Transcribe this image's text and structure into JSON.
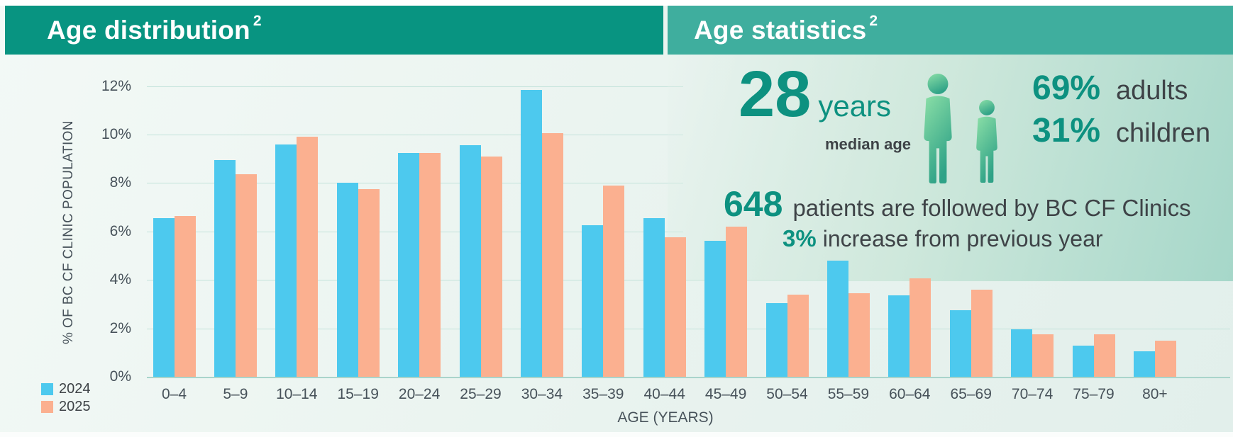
{
  "header": {
    "left_title": "Age distribution",
    "left_superscript": "2",
    "right_title": "Age statistics",
    "right_superscript": "2"
  },
  "chart_data": {
    "type": "bar",
    "title": "Age distribution",
    "xlabel": "AGE (YEARS)",
    "ylabel": "% OF BC CF CLINIC POPULATION",
    "ylim": [
      0,
      12
    ],
    "y_ticks": [
      "0%",
      "2%",
      "4%",
      "6%",
      "8%",
      "10%",
      "12%"
    ],
    "grid": true,
    "legend_position": "bottom-left",
    "categories": [
      "0–4",
      "5–9",
      "10–14",
      "15–19",
      "20–24",
      "25–29",
      "30–34",
      "35–39",
      "40–44",
      "45–49",
      "50–54",
      "55–59",
      "60–64",
      "65–69",
      "70–74",
      "75–79",
      "80+"
    ],
    "series": [
      {
        "name": "2024",
        "color": "#4dc9ee",
        "values": [
          6.55,
          8.95,
          9.6,
          8.0,
          9.25,
          9.55,
          11.85,
          6.25,
          6.55,
          5.6,
          3.05,
          4.8,
          3.35,
          2.75,
          1.95,
          1.3,
          1.05
        ]
      },
      {
        "name": "2025",
        "color": "#fbb090",
        "values": [
          6.65,
          8.35,
          9.9,
          7.75,
          9.25,
          9.1,
          10.05,
          7.9,
          5.75,
          6.2,
          3.4,
          3.45,
          4.05,
          3.6,
          1.75,
          1.75,
          1.5
        ]
      }
    ]
  },
  "stats": {
    "median_value": "28",
    "median_unit": "years",
    "median_label": "median age",
    "adults_pct": "69%",
    "adults_label": "adults",
    "children_pct": "31%",
    "children_label": "children",
    "patients_count": "648",
    "patients_label": "patients are followed by BC CF Clinics",
    "increase_pct": "3%",
    "increase_label": "increase from previous year",
    "icons": [
      "adult-person-icon",
      "child-person-icon"
    ]
  },
  "colors": {
    "header_left_bg": "#089481",
    "header_right_bg": "#3fae9e",
    "bar_2024": "#4dc9ee",
    "bar_2025": "#fbb090",
    "accent_teal": "#0d9180",
    "dark_text": "#3e4347",
    "gridline": "#c2e2da",
    "panel_gradient_end": "#a6d7c9"
  }
}
